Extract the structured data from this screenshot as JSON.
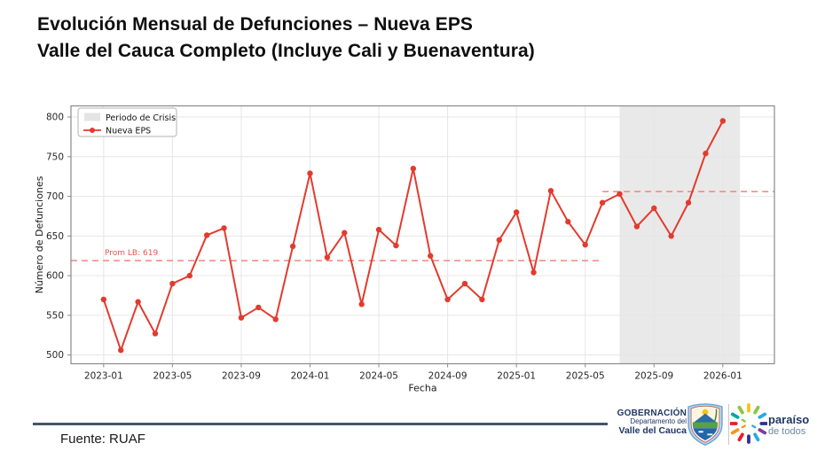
{
  "title": {
    "line1": "Evolución Mensual de Defunciones – Nueva EPS",
    "line2": "Valle del Cauca Completo (Incluye Cali y Buenaventura)"
  },
  "footer": {
    "source": "Fuente: RUAF",
    "gov": {
      "name": "GOBERNACIÓN",
      "dept": "Departamento del",
      "region": "Valle del Cauca"
    },
    "slogan": {
      "line1": "paraíso",
      "line2": "de todos"
    }
  },
  "chart_data": {
    "type": "line",
    "series_name": "Nueva EPS",
    "xlabel": "Fecha",
    "ylabel": "Número de Defunciones",
    "legend": [
      "Periodo de Crisis",
      "Nueva EPS"
    ],
    "legend_position": "upper left",
    "grid": true,
    "months": [
      "2023-01",
      "2023-02",
      "2023-03",
      "2023-04",
      "2023-05",
      "2023-06",
      "2023-07",
      "2023-08",
      "2023-09",
      "2023-10",
      "2023-11",
      "2023-12",
      "2024-01",
      "2024-02",
      "2024-03",
      "2024-04",
      "2024-05",
      "2024-06",
      "2024-07",
      "2024-08",
      "2024-09",
      "2024-10",
      "2024-11",
      "2024-12",
      "2025-01",
      "2025-02",
      "2025-03",
      "2025-04",
      "2025-05",
      "2025-06",
      "2025-07",
      "2025-08",
      "2025-09",
      "2025-10",
      "2025-11",
      "2025-12",
      "2026-01"
    ],
    "values": [
      570,
      506,
      567,
      527,
      590,
      600,
      651,
      660,
      547,
      560,
      545,
      637,
      729,
      623,
      654,
      564,
      658,
      638,
      735,
      625,
      570,
      590,
      570,
      645,
      680,
      604,
      707,
      668,
      639,
      692,
      703,
      662,
      685,
      650,
      692,
      754,
      795
    ],
    "x_tick_step": 4,
    "y_ticks": [
      500,
      550,
      600,
      650,
      700,
      750,
      800
    ],
    "xlim_index": [
      -1.9,
      39.0
    ],
    "ylim": [
      489,
      814
    ],
    "baseline": {
      "label": "Prom LB: 619",
      "value": 619,
      "from_index": -1.9,
      "to_index": 29
    },
    "crisis_line": {
      "value": 706,
      "from_index": 29,
      "to_index": 39.0
    },
    "crisis_span": {
      "label": "Periodo de Crisis",
      "from": "2025-07",
      "to": "2026-02",
      "from_index": 30,
      "to_index": 37
    },
    "colors": {
      "line": "#e23b2e",
      "marker": "#e23b2e",
      "dashed": "#f0867d",
      "prom_label": "#e05a4e",
      "span": "#e9e9e9",
      "grid": "#e6e6e6",
      "spine": "#8a8a8a",
      "tick_text": "#262626"
    }
  }
}
